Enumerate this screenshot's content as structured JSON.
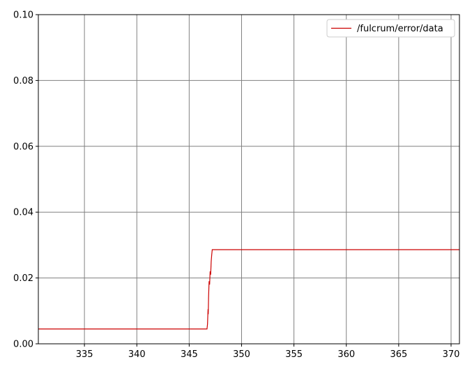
{
  "chart_data": {
    "type": "line",
    "title": "",
    "xlabel": "",
    "ylabel": "",
    "xlim": [
      330.6,
      370.8
    ],
    "ylim": [
      0,
      0.1
    ],
    "x_ticks": [
      335,
      340,
      345,
      350,
      355,
      360,
      365,
      370
    ],
    "y_ticks": [
      0.0,
      0.02,
      0.04,
      0.06,
      0.08,
      0.1
    ],
    "x_tick_labels": [
      "335",
      "340",
      "345",
      "350",
      "355",
      "360",
      "365",
      "370"
    ],
    "y_tick_labels": [
      "0.00",
      "0.02",
      "0.04",
      "0.06",
      "0.08",
      "0.10"
    ],
    "grid": true,
    "legend_position": "top-right",
    "series": [
      {
        "name": "/fulcrum/error/data",
        "color": "#cc0000",
        "x": [
          330.6,
          346.7,
          346.75,
          346.8,
          346.82,
          346.85,
          346.9,
          346.95,
          347.0,
          347.05,
          347.1,
          347.15,
          347.2,
          370.8
        ],
        "y": [
          0.0045,
          0.0045,
          0.006,
          0.0105,
          0.009,
          0.014,
          0.019,
          0.018,
          0.022,
          0.021,
          0.025,
          0.027,
          0.0286,
          0.0286
        ]
      }
    ]
  }
}
